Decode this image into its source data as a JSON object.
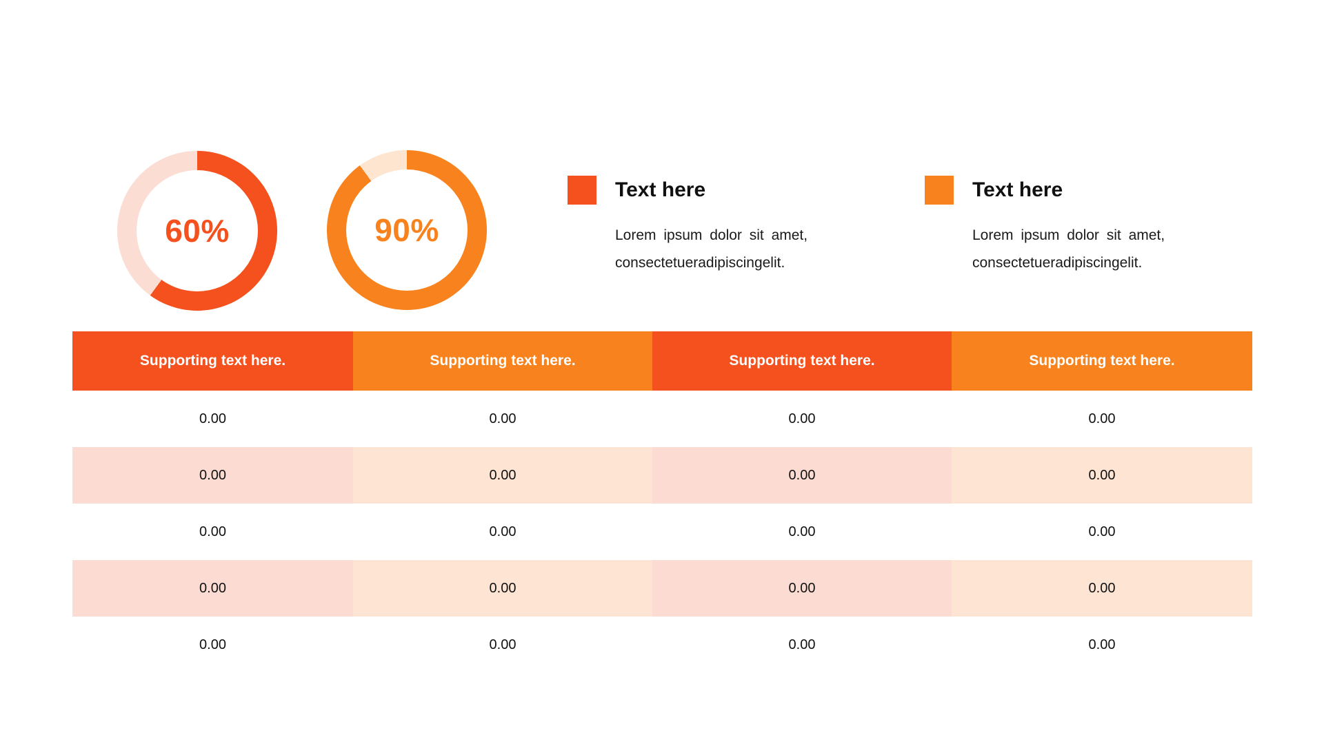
{
  "slide": {
    "background": "#FFFFFF"
  },
  "colors": {
    "accent_red_orange": "#F4511E",
    "accent_orange": "#F8831E",
    "tint_pink": "#FCDCD2",
    "tint_peach": "#FEE4D2",
    "donut_track_pink": "#FBDDD4",
    "donut_track_peach": "#FDE5CF"
  },
  "donuts": [
    {
      "label": "60%",
      "percent": 60,
      "fill_color": "#F4511E",
      "track_color": "#FBDDD4"
    },
    {
      "label": "90%",
      "percent": 90,
      "fill_color": "#F8831E",
      "track_color": "#FDE5CF"
    }
  ],
  "legends": [
    {
      "title": "Text here",
      "body_line1": "Lorem ipsum dolor sit amet,",
      "body_line2": "consectetueradipiscingelit.",
      "swatch_color": "#F4511E"
    },
    {
      "title": "Text here",
      "body_line1": "Lorem ipsum dolor sit amet,",
      "body_line2": "consectetueradipiscingelit.",
      "swatch_color": "#F8831E"
    }
  ],
  "table": {
    "columns": [
      {
        "header": "Supporting text here.",
        "header_color": "#F4511E",
        "tint_color": "#FCDCD2"
      },
      {
        "header": "Supporting text here.",
        "header_color": "#F8831E",
        "tint_color": "#FEE4D2"
      },
      {
        "header": "Supporting text here.",
        "header_color": "#F4511E",
        "tint_color": "#FCDCD2"
      },
      {
        "header": "Supporting text here.",
        "header_color": "#F8831E",
        "tint_color": "#FEE4D2"
      }
    ],
    "rows": [
      [
        "0.00",
        "0.00",
        "0.00",
        "0.00"
      ],
      [
        "0.00",
        "0.00",
        "0.00",
        "0.00"
      ],
      [
        "0.00",
        "0.00",
        "0.00",
        "0.00"
      ],
      [
        "0.00",
        "0.00",
        "0.00",
        "0.00"
      ],
      [
        "0.00",
        "0.00",
        "0.00",
        "0.00"
      ]
    ]
  },
  "chart_data": [
    {
      "type": "pie",
      "subtype": "donut",
      "title": "",
      "labels": [
        "filled",
        "remaining"
      ],
      "values": [
        60,
        40
      ],
      "center_label": "60%",
      "colors": [
        "#F4511E",
        "#FBDDD4"
      ],
      "start_angle_deg": 0,
      "direction": "clockwise"
    },
    {
      "type": "pie",
      "subtype": "donut",
      "title": "",
      "labels": [
        "filled",
        "remaining"
      ],
      "values": [
        90,
        10
      ],
      "center_label": "90%",
      "colors": [
        "#F8831E",
        "#FDE5CF"
      ],
      "start_angle_deg": 0,
      "direction": "clockwise"
    },
    {
      "type": "table",
      "columns": [
        "Supporting text here.",
        "Supporting text here.",
        "Supporting text here.",
        "Supporting text here."
      ],
      "rows": [
        [
          "0.00",
          "0.00",
          "0.00",
          "0.00"
        ],
        [
          "0.00",
          "0.00",
          "0.00",
          "0.00"
        ],
        [
          "0.00",
          "0.00",
          "0.00",
          "0.00"
        ],
        [
          "0.00",
          "0.00",
          "0.00",
          "0.00"
        ],
        [
          "0.00",
          "0.00",
          "0.00",
          "0.00"
        ]
      ],
      "striped_rows": [
        2,
        4
      ]
    }
  ]
}
